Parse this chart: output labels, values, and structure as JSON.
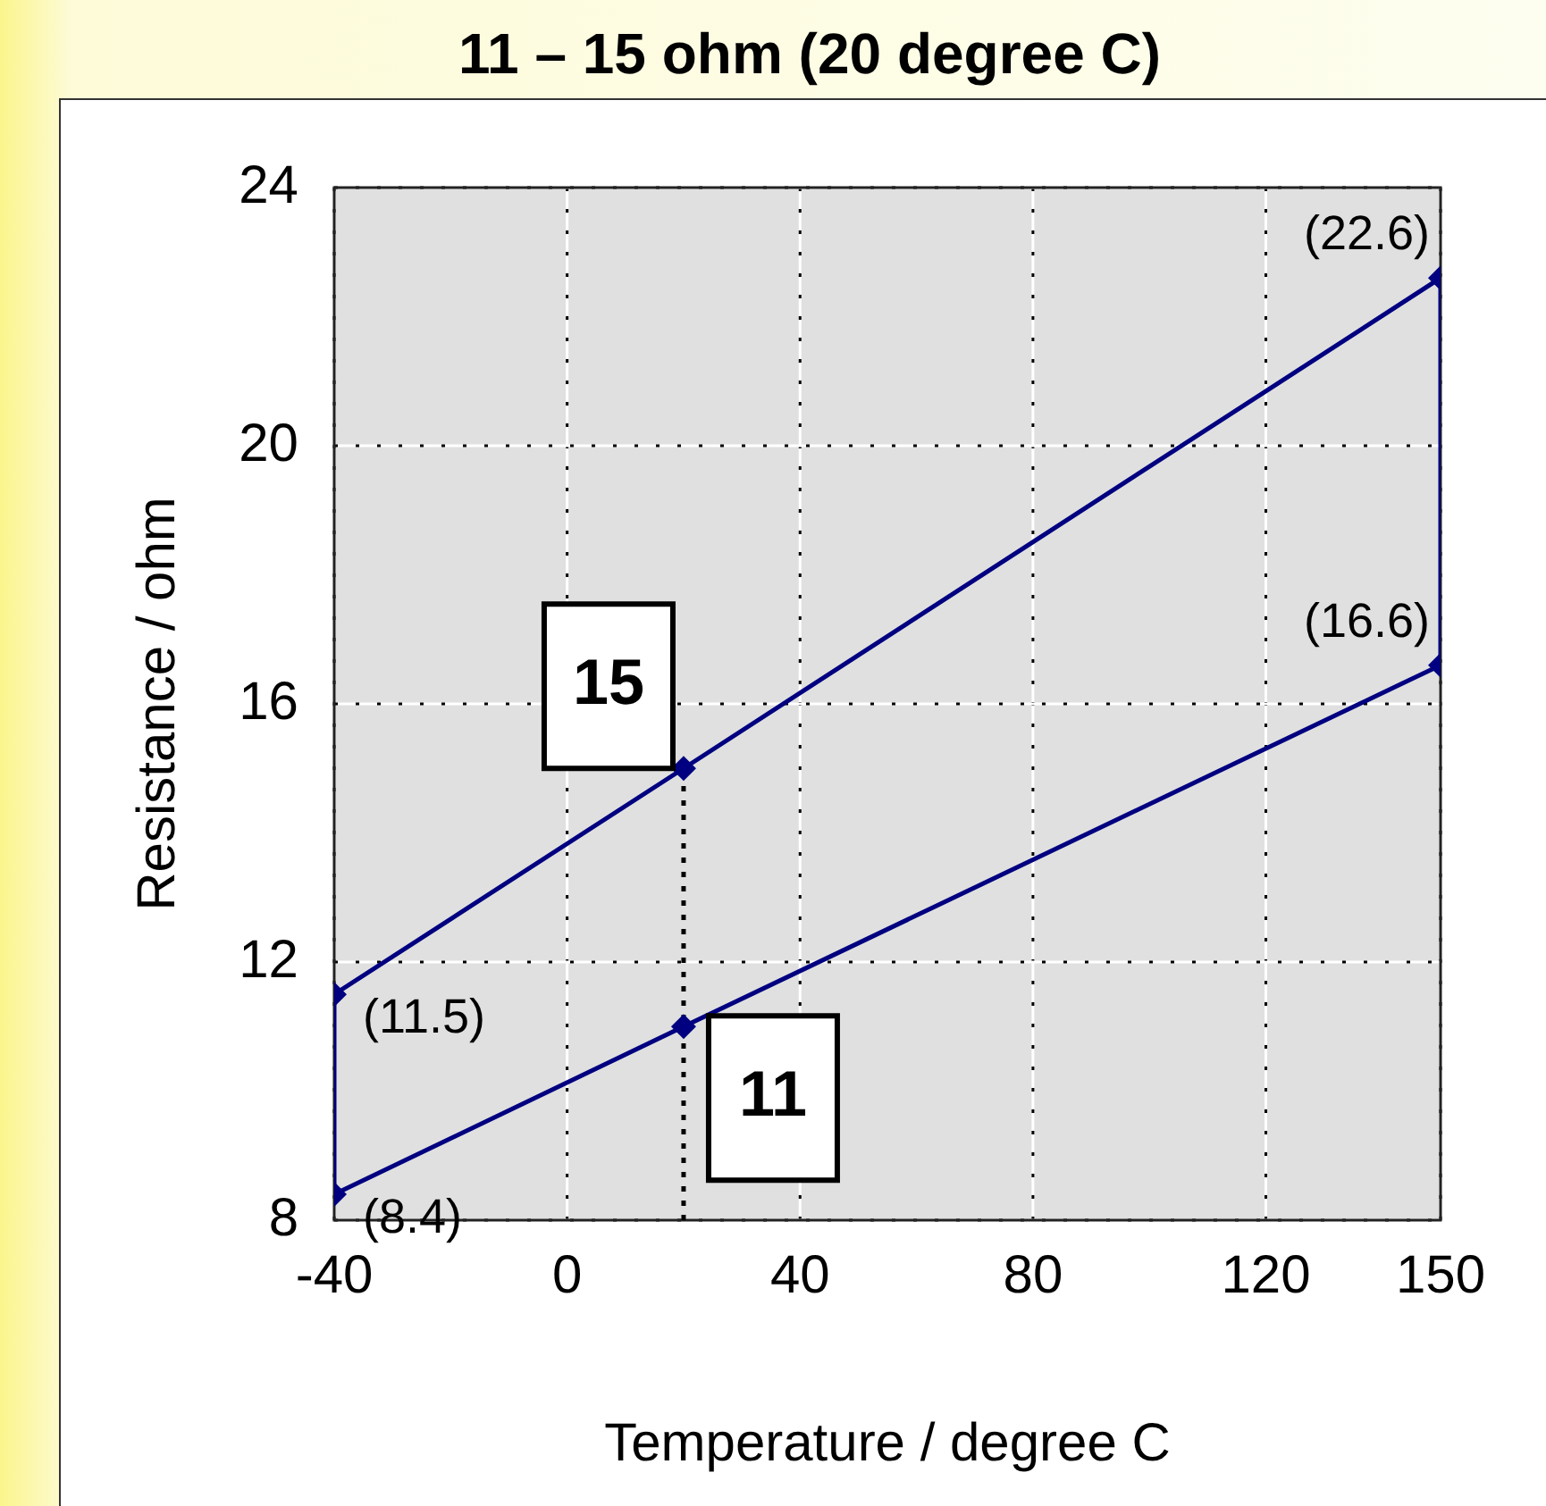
{
  "chart_data": {
    "type": "line",
    "title": "11 – 15 ohm (20 degree C)",
    "xlabel": "Temperature / degree C",
    "ylabel": "Resistance / ohm",
    "xlim": [
      -40,
      150
    ],
    "xticks": [
      -40,
      0,
      40,
      80,
      120,
      150
    ],
    "ylim": [
      8,
      24
    ],
    "yticks": [
      8,
      12,
      16,
      20,
      24
    ],
    "grid": true,
    "marker": "diamond",
    "series": [
      {
        "color": "#000080",
        "x": [
          -40,
          20,
          150
        ],
        "values": [
          11.5,
          15,
          22.6
        ],
        "value_labels": [
          "(11.5)",
          null,
          "(22.6)"
        ]
      },
      {
        "color": "#000080",
        "x": [
          -40,
          20,
          150
        ],
        "values": [
          8.4,
          11,
          16.6
        ],
        "value_labels": [
          "(8.4)",
          null,
          "(16.6)"
        ]
      },
      {
        "color": "#000080",
        "x": [
          -40,
          -40
        ],
        "values": [
          8.4,
          11.5
        ],
        "marker": "none"
      },
      {
        "color": "#000080",
        "x": [
          150,
          150
        ],
        "values": [
          16.6,
          22.6
        ],
        "marker": "none"
      },
      {
        "color": "#000000",
        "x": [
          20,
          20
        ],
        "values": [
          8,
          15
        ],
        "marker": "none",
        "line_style": "dotted"
      }
    ],
    "annotations": [
      {
        "text": "15",
        "x": 20,
        "y": 15
      },
      {
        "text": "11",
        "x": 20,
        "y": 11
      }
    ]
  }
}
